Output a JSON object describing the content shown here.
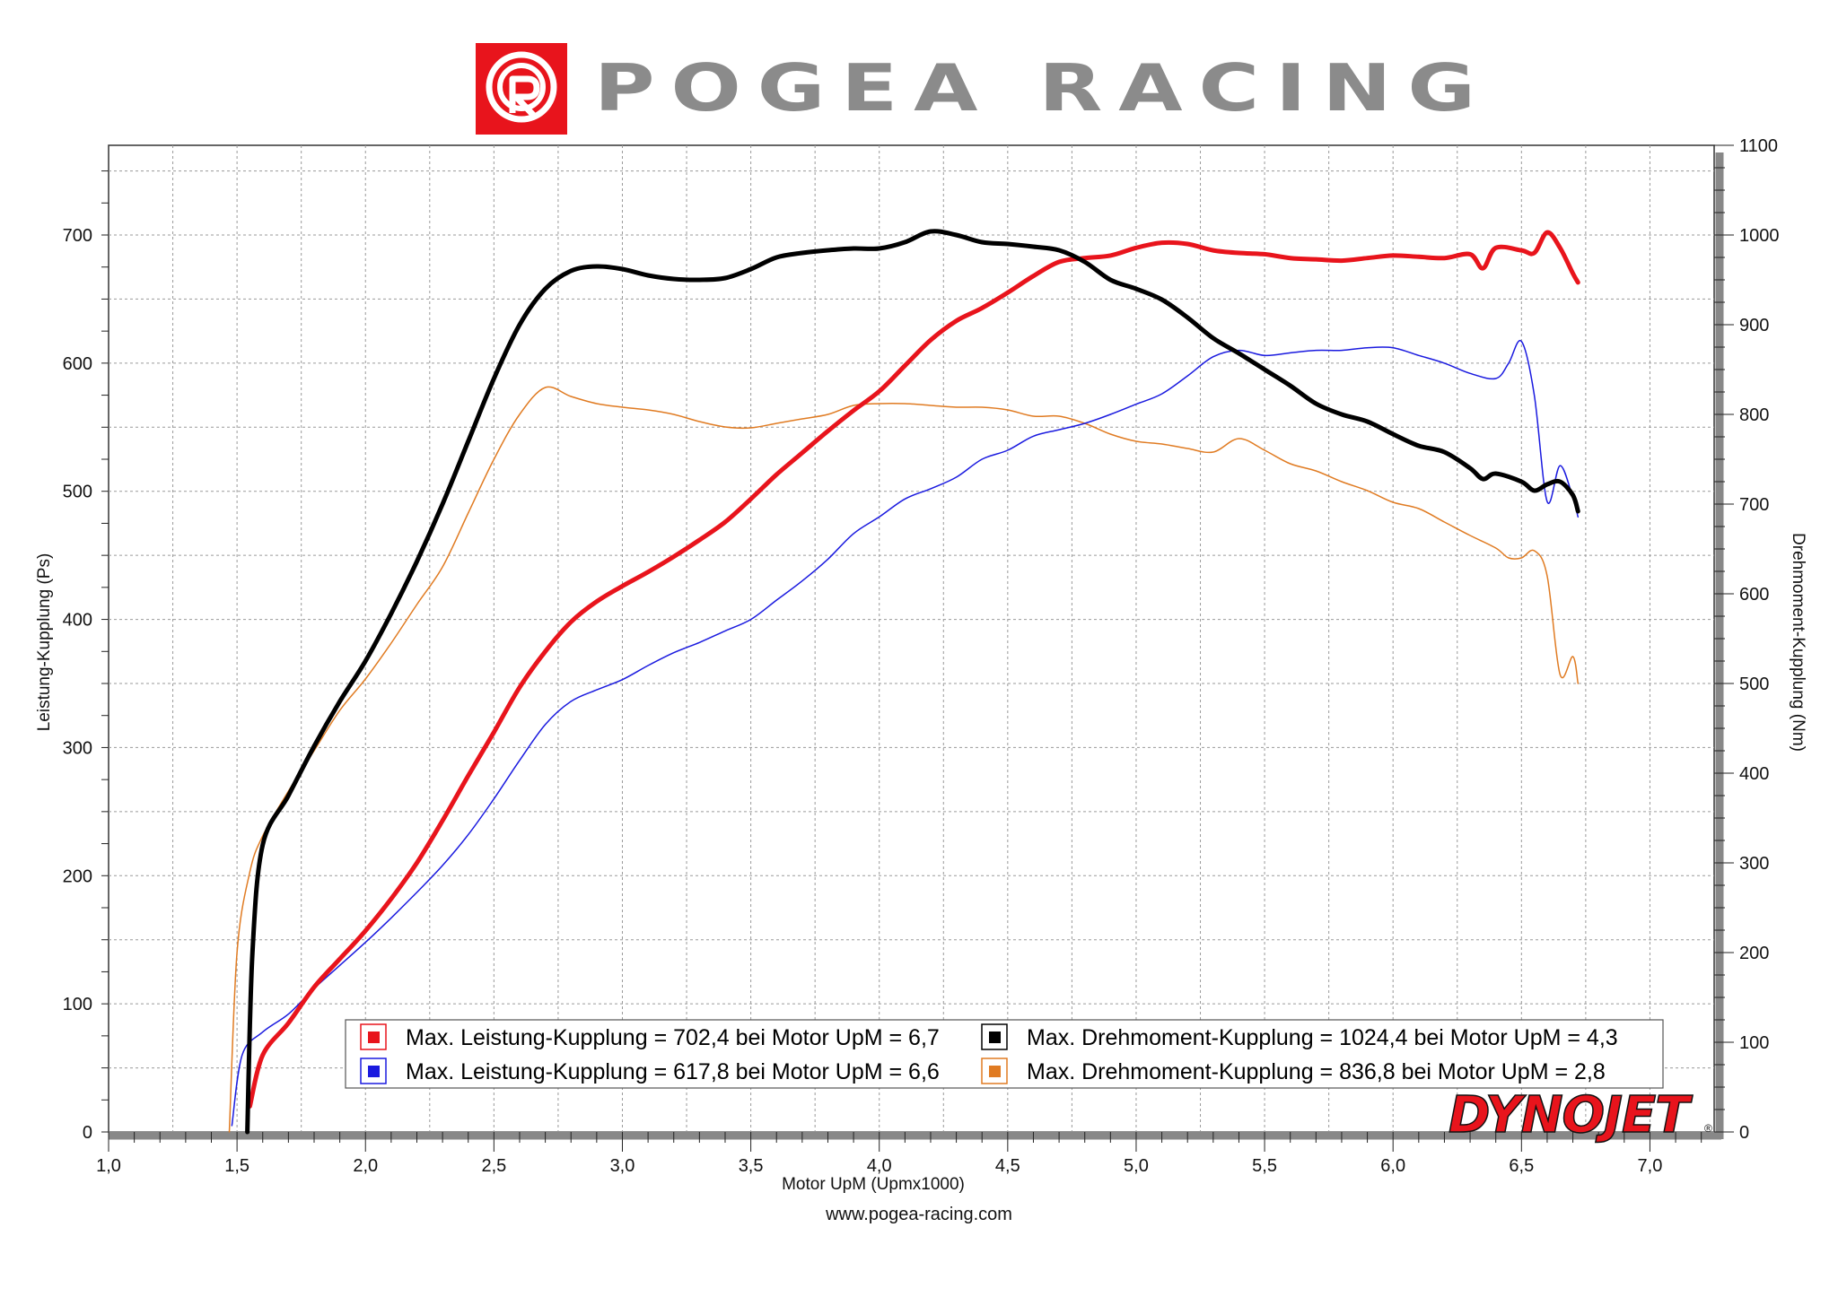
{
  "header": {
    "brand": "POGEA RACING",
    "logo_icon": "pogea-racing-r-logo-icon"
  },
  "footer": {
    "website": "www.pogea-racing.com",
    "dynojet_logo": "DYNOJET"
  },
  "chart_data": {
    "type": "line",
    "xlabel": "Motor UpM (Upmx1000)",
    "ylabel_left": "Leistung-Kupplung (Ps)",
    "ylabel_right": "Drehmoment-Kupplung (Nm)",
    "xlim": [
      1.0,
      7.25
    ],
    "ylim_left": [
      0,
      770
    ],
    "ylim_right": [
      0,
      1100
    ],
    "x_ticks": [
      "1,0",
      "1,5",
      "2,0",
      "2,5",
      "3,0",
      "3,5",
      "4,0",
      "4,5",
      "5,0",
      "5,5",
      "6,0",
      "6,5",
      "7,0"
    ],
    "y_left_ticks": [
      "0",
      "100",
      "200",
      "300",
      "400",
      "500",
      "600",
      "700"
    ],
    "y_right_ticks": [
      "0",
      "100",
      "200",
      "300",
      "400",
      "500",
      "600",
      "700",
      "800",
      "900",
      "1000",
      "1100"
    ],
    "grid": true,
    "legend_position": "bottom-right",
    "legend": [
      {
        "text": "Max. Leistung-Kupplung = 702,4 bei Motor UpM = 6,7",
        "color": "#e8141c"
      },
      {
        "text": "Max. Drehmoment-Kupplung = 1024,4 bei Motor UpM = 4,3",
        "color": "#000000"
      },
      {
        "text": "Max. Leistung-Kupplung = 617,8 bei Motor UpM = 6,6",
        "color": "#1a1adf"
      },
      {
        "text": "Max. Drehmoment-Kupplung = 836,8 bei Motor UpM = 2,8",
        "color": "#e07b22"
      }
    ],
    "series": [
      {
        "color": "#e8141c",
        "axis": "left",
        "width": 5,
        "x": [
          1.55,
          1.6,
          1.7,
          1.8,
          1.9,
          2.0,
          2.1,
          2.2,
          2.3,
          2.4,
          2.5,
          2.6,
          2.7,
          2.8,
          2.9,
          3.0,
          3.1,
          3.2,
          3.3,
          3.4,
          3.5,
          3.6,
          3.7,
          3.8,
          3.9,
          4.0,
          4.1,
          4.2,
          4.3,
          4.4,
          4.5,
          4.6,
          4.7,
          4.8,
          4.9,
          5.0,
          5.1,
          5.2,
          5.3,
          5.4,
          5.5,
          5.6,
          5.7,
          5.8,
          5.9,
          6.0,
          6.1,
          6.2,
          6.3,
          6.35,
          6.4,
          6.5,
          6.55,
          6.6,
          6.65,
          6.7,
          6.72
        ],
        "y": [
          20,
          60,
          85,
          113,
          135,
          157,
          182,
          210,
          243,
          278,
          312,
          347,
          375,
          398,
          414,
          426,
          437,
          449,
          462,
          476,
          494,
          513,
          530,
          547,
          563,
          578,
          598,
          618,
          633,
          643,
          655,
          668,
          679,
          682,
          684,
          690,
          694,
          693,
          688,
          686,
          685,
          682,
          681,
          680,
          682,
          684,
          683,
          682,
          685,
          674,
          690,
          688,
          686,
          702,
          690,
          670,
          663
        ]
      },
      {
        "color": "#000000",
        "axis": "right",
        "width": 5,
        "x": [
          1.54,
          1.56,
          1.6,
          1.7,
          1.8,
          1.9,
          2.0,
          2.1,
          2.2,
          2.3,
          2.4,
          2.5,
          2.6,
          2.7,
          2.8,
          2.9,
          3.0,
          3.1,
          3.2,
          3.3,
          3.4,
          3.5,
          3.6,
          3.7,
          3.8,
          3.9,
          4.0,
          4.1,
          4.2,
          4.3,
          4.4,
          4.5,
          4.6,
          4.7,
          4.8,
          4.9,
          5.0,
          5.1,
          5.2,
          5.3,
          5.4,
          5.5,
          5.6,
          5.7,
          5.8,
          5.9,
          6.0,
          6.1,
          6.2,
          6.3,
          6.35,
          6.4,
          6.5,
          6.55,
          6.6,
          6.65,
          6.7,
          6.72
        ],
        "y": [
          0,
          200,
          320,
          375,
          430,
          480,
          525,
          578,
          636,
          700,
          770,
          840,
          900,
          940,
          960,
          965,
          962,
          955,
          951,
          950,
          952,
          962,
          975,
          980,
          983,
          985,
          985,
          992,
          1004,
          1000,
          992,
          990,
          987,
          983,
          970,
          950,
          940,
          928,
          908,
          885,
          868,
          850,
          832,
          812,
          800,
          792,
          778,
          765,
          758,
          740,
          728,
          734,
          725,
          715,
          722,
          725,
          710,
          692
        ]
      },
      {
        "color": "#1a1adf",
        "axis": "left",
        "width": 1.5,
        "x": [
          1.48,
          1.52,
          1.6,
          1.7,
          1.8,
          1.9,
          2.0,
          2.1,
          2.2,
          2.3,
          2.4,
          2.5,
          2.6,
          2.7,
          2.8,
          2.9,
          3.0,
          3.1,
          3.2,
          3.3,
          3.4,
          3.5,
          3.6,
          3.7,
          3.8,
          3.9,
          4.0,
          4.1,
          4.2,
          4.3,
          4.4,
          4.5,
          4.6,
          4.7,
          4.8,
          4.9,
          5.0,
          5.1,
          5.2,
          5.3,
          5.4,
          5.5,
          5.6,
          5.7,
          5.8,
          5.9,
          6.0,
          6.1,
          6.2,
          6.3,
          6.4,
          6.45,
          6.5,
          6.55,
          6.6,
          6.65,
          6.7,
          6.72
        ],
        "y": [
          5,
          60,
          78,
          92,
          112,
          130,
          148,
          167,
          187,
          208,
          232,
          260,
          290,
          318,
          336,
          345,
          353,
          364,
          374,
          382,
          391,
          400,
          415,
          430,
          447,
          467,
          480,
          494,
          502,
          511,
          525,
          532,
          543,
          548,
          553,
          560,
          568,
          576,
          590,
          605,
          610,
          606,
          608,
          610,
          610,
          612,
          612,
          606,
          600,
          592,
          588,
          600,
          617,
          575,
          492,
          520,
          495,
          480
        ]
      },
      {
        "color": "#e07b22",
        "axis": "right",
        "width": 1.5,
        "x": [
          1.47,
          1.5,
          1.55,
          1.6,
          1.7,
          1.8,
          1.9,
          2.0,
          2.1,
          2.2,
          2.3,
          2.4,
          2.5,
          2.6,
          2.7,
          2.8,
          2.9,
          3.0,
          3.1,
          3.2,
          3.3,
          3.4,
          3.5,
          3.6,
          3.7,
          3.8,
          3.9,
          4.0,
          4.1,
          4.2,
          4.3,
          4.4,
          4.5,
          4.6,
          4.7,
          4.8,
          4.9,
          5.0,
          5.1,
          5.2,
          5.3,
          5.4,
          5.5,
          5.6,
          5.7,
          5.8,
          5.9,
          6.0,
          6.1,
          6.2,
          6.3,
          6.4,
          6.45,
          6.5,
          6.55,
          6.6,
          6.65,
          6.7,
          6.72
        ],
        "y": [
          0,
          200,
          290,
          330,
          380,
          425,
          470,
          505,
          545,
          588,
          630,
          690,
          750,
          800,
          830,
          820,
          812,
          808,
          805,
          800,
          792,
          786,
          785,
          790,
          795,
          800,
          810,
          812,
          812,
          810,
          808,
          808,
          805,
          798,
          798,
          790,
          778,
          770,
          767,
          762,
          758,
          773,
          760,
          745,
          737,
          725,
          715,
          702,
          695,
          680,
          665,
          651,
          640,
          640,
          648,
          620,
          510,
          530,
          500
        ]
      }
    ]
  }
}
